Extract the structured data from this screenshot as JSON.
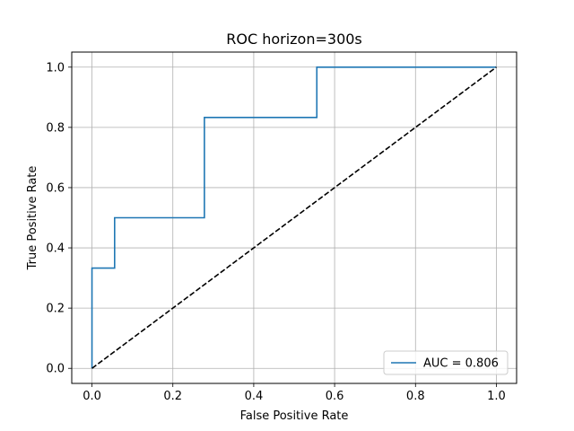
{
  "chart_data": {
    "type": "line",
    "title": "ROC horizon=300s",
    "xlabel": "False Positive Rate",
    "ylabel": "True Positive Rate",
    "xlim": [
      -0.05,
      1.05
    ],
    "ylim": [
      -0.05,
      1.05
    ],
    "xticks": [
      0.0,
      0.2,
      0.4,
      0.6,
      0.8,
      1.0
    ],
    "yticks": [
      0.0,
      0.2,
      0.4,
      0.6,
      0.8,
      1.0
    ],
    "xtick_labels": [
      "0.0",
      "0.2",
      "0.4",
      "0.6",
      "0.8",
      "1.0"
    ],
    "ytick_labels": [
      "0.0",
      "0.2",
      "0.4",
      "0.6",
      "0.8",
      "1.0"
    ],
    "grid": true,
    "legend_position": "lower-right",
    "series": [
      {
        "name": "AUC = 0.806",
        "color": "#1f77b4",
        "style": "solid",
        "points": [
          [
            0.0,
            0.0
          ],
          [
            0.0,
            0.333
          ],
          [
            0.056,
            0.333
          ],
          [
            0.056,
            0.5
          ],
          [
            0.278,
            0.5
          ],
          [
            0.278,
            0.833
          ],
          [
            0.556,
            0.833
          ],
          [
            0.556,
            1.0
          ],
          [
            1.0,
            1.0
          ]
        ]
      },
      {
        "color": "#000000",
        "style": "dashed",
        "points": [
          [
            0.0,
            0.0
          ],
          [
            1.0,
            1.0
          ]
        ]
      }
    ]
  }
}
